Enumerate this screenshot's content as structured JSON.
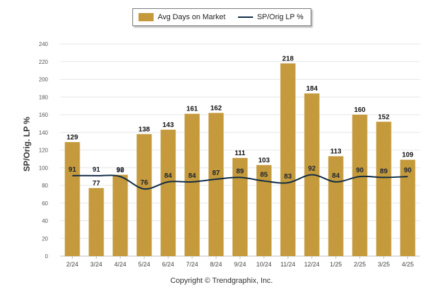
{
  "legend": {
    "bar_label": "Avg Days on Market",
    "line_label": "SP/Orig LP %"
  },
  "y_axis_label": "SP/Orig. LP %",
  "footer": "Copyright © Trendgraphix, Inc.",
  "colors": {
    "bar": "#C49A3C",
    "line": "#0F2A44",
    "grid": "#e6e6e6"
  },
  "chart_data": {
    "type": "bar",
    "title": "",
    "xlabel": "",
    "ylabel": "SP/Orig. LP %",
    "ylim": [
      0,
      240
    ],
    "yticks": [
      0,
      20,
      40,
      60,
      80,
      100,
      120,
      140,
      160,
      180,
      200,
      220,
      240
    ],
    "categories": [
      "2/24",
      "3/24",
      "4/24",
      "5/24",
      "6/24",
      "7/24",
      "8/24",
      "9/24",
      "10/24",
      "11/24",
      "12/24",
      "1/25",
      "2/25",
      "3/25",
      "4/25"
    ],
    "series": [
      {
        "name": "Avg Days on Market",
        "type": "bar",
        "values": [
          129,
          77,
          92,
          138,
          143,
          161,
          162,
          111,
          103,
          218,
          184,
          113,
          160,
          152,
          109
        ]
      },
      {
        "name": "SP/Orig LP %",
        "type": "line",
        "values": [
          91,
          91,
          90,
          76,
          84,
          84,
          87,
          89,
          85,
          83,
          92,
          84,
          90,
          89,
          90
        ]
      }
    ],
    "legend_position": "top",
    "grid": true
  }
}
